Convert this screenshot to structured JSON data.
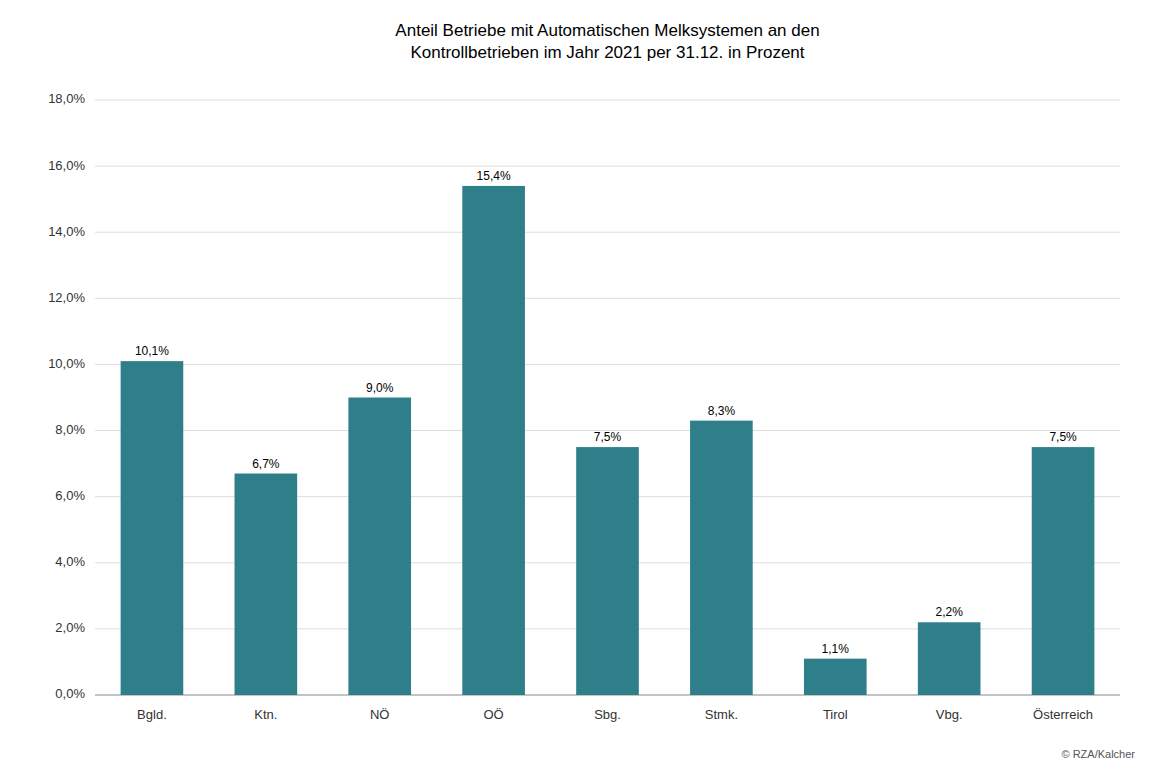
{
  "chart_data": {
    "type": "bar",
    "title": "Anteil Betriebe mit Automatischen Melksystemen an den\nKontrollbetrieben im Jahr 2021 per 31.12. in Prozent",
    "categories": [
      "Bgld.",
      "Ktn.",
      "NÖ",
      "OÖ",
      "Sbg.",
      "Stmk.",
      "Tirol",
      "Vbg.",
      "Österreich"
    ],
    "values": [
      10.1,
      6.7,
      9.0,
      15.4,
      7.5,
      8.3,
      1.1,
      2.2,
      7.5
    ],
    "value_labels": [
      "10,1%",
      "6,7%",
      "9,0%",
      "15,4%",
      "7,5%",
      "8,3%",
      "1,1%",
      "2,2%",
      "7,5%"
    ],
    "data_labels": true,
    "color": "#2e7f8a",
    "ylim": [
      0,
      18
    ],
    "yticks": [
      {
        "value": 0,
        "label": "0,0%"
      },
      {
        "value": 2,
        "label": "2,0%"
      },
      {
        "value": 4,
        "label": "4,0%"
      },
      {
        "value": 6,
        "label": "6,0%"
      },
      {
        "value": 8,
        "label": "8,0%"
      },
      {
        "value": 10,
        "label": "10,0%"
      },
      {
        "value": 12,
        "label": "12,0%"
      },
      {
        "value": 14,
        "label": "14,0%"
      },
      {
        "value": 16,
        "label": "16,0%"
      },
      {
        "value": 18,
        "label": "18,0%"
      }
    ],
    "grid": true,
    "annotations": [
      "© RZA/Kalcher"
    ]
  }
}
